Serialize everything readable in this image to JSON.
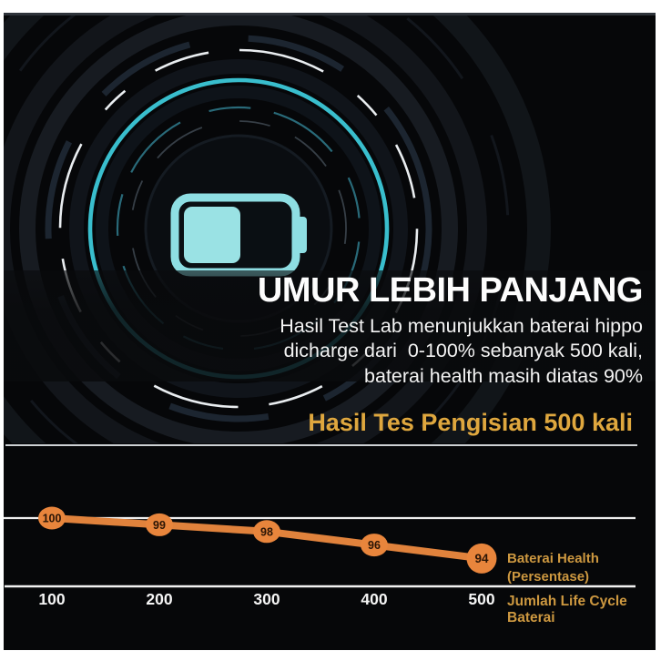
{
  "colors": {
    "page_bg": "#FFFFFF",
    "content_bg": "#060709",
    "battery_cyan": "#8EDEE3",
    "battery_fill_cyan": "#9AE2E4",
    "ring_cyan": "#3CC8D8",
    "ring_white_dash": "#E9EDF0",
    "line_orange": "#E0823C",
    "marker_orange": "#E8853C",
    "gold_text": "#CD9840",
    "heading_gold": "#DFA73E",
    "separator_gray": "#CDD1D4",
    "axis_white": "#F2F2F2"
  },
  "hero": {
    "icon": "battery-half-icon"
  },
  "headline": {
    "title": "UMUR LEBIH PANJANG",
    "subtitle_lines": [
      "Hasil Test Lab menunjukkan baterai hippo",
      "dicharge dari  0-100% sebanyak 500 kali,",
      "baterai health masih diatas 90%"
    ]
  },
  "section_heading": "Hasil Tes Pengisian 500 kali",
  "chart_legend": {
    "series_line1": "Baterai Health",
    "series_line2": "(Persentase)",
    "x_axis_label": "Jumlah Life Cycle Baterai"
  },
  "chart_data": {
    "type": "line",
    "title": "Hasil Tes Pengisian 500 kali",
    "x": [
      100,
      200,
      300,
      400,
      500
    ],
    "series": [
      {
        "name": "Baterai Health (Persentase)",
        "values": [
          100,
          99,
          98,
          96,
          94
        ]
      }
    ],
    "point_labels": [
      "100",
      "99",
      "98",
      "96",
      "94"
    ],
    "xlabel": "Jumlah Life Cycle Baterai",
    "ylabel": "Baterai Health (Persentase)",
    "ylim": [
      92,
      101
    ],
    "grid": "single horizontal gridline at value 100",
    "legend_position": "right-of-last-point",
    "line_color": "#E0823C",
    "marker_fill": "#E8853C",
    "marker_text_color": "#2A1506",
    "axis_color": "#F2F2F2",
    "tick_label_color": "#F5F5F5"
  }
}
